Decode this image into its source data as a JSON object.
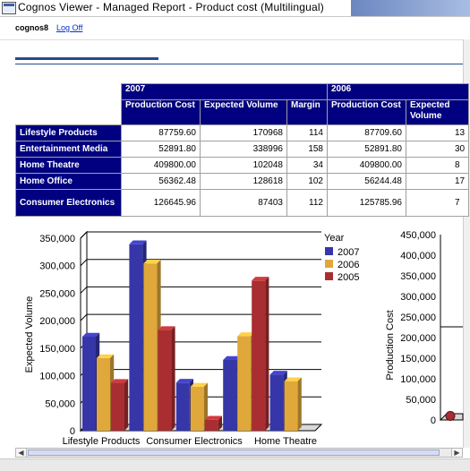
{
  "window": {
    "title": "Cognos Viewer - Managed Report - Product cost (Multilingual)"
  },
  "user": {
    "name": "cognos8",
    "logoff_label": "Log Off"
  },
  "crosstab": {
    "years": [
      "2007",
      "2006"
    ],
    "measures": [
      "Production Cost",
      "Expected Volume",
      "Margin"
    ],
    "measures_2006": [
      "Production Cost",
      "Expected Volume"
    ],
    "rows": [
      {
        "label": "Lifestyle Products",
        "v2007": [
          "87759.60",
          "170968",
          "114"
        ],
        "v2006": [
          "87709.60",
          "13"
        ]
      },
      {
        "label": "Entertainment Media",
        "v2007": [
          "52891.80",
          "338996",
          "158"
        ],
        "v2006": [
          "52891.80",
          "30"
        ]
      },
      {
        "label": "Home Theatre",
        "v2007": [
          "409800.00",
          "102048",
          "34"
        ],
        "v2006": [
          "409800.00",
          "8"
        ]
      },
      {
        "label": "Home Office",
        "v2007": [
          "56362.48",
          "128618",
          "102"
        ],
        "v2006": [
          "56244.48",
          "17"
        ]
      },
      {
        "label": "Consumer Electronics",
        "v2007": [
          "126645.96",
          "87403",
          "112"
        ],
        "v2006": [
          "125785.96",
          "7"
        ]
      }
    ]
  },
  "colors": {
    "header": "#000080",
    "s2007": "#3636a8",
    "s2006": "#e0a83a",
    "s2005": "#a82e32"
  },
  "chart_data": [
    {
      "type": "bar",
      "ylabel": "Expected Volume",
      "ylim": [
        0,
        350000
      ],
      "yticks": [
        "0",
        "50,000",
        "100,000",
        "150,000",
        "200,000",
        "250,000",
        "300,000",
        "350,000"
      ],
      "categories": [
        "Lifestyle Products",
        "Entertainment Media",
        "Consumer Electronics",
        "Home Office",
        "Home Theatre"
      ],
      "x_tick_labels": [
        "Lifestyle Products",
        "Consumer Electronics",
        "Home Theatre"
      ],
      "legend_title": "Year",
      "legend_position": "right",
      "grid": true,
      "series": [
        {
          "name": "2007",
          "values": [
            170968,
            338996,
            87403,
            128618,
            102048
          ]
        },
        {
          "name": "2006",
          "values": [
            132000,
            304000,
            80000,
            172000,
            90000
          ]
        },
        {
          "name": "2005",
          "values": [
            87000,
            183000,
            20000,
            273000,
            null
          ]
        }
      ]
    },
    {
      "type": "scatter",
      "ylabel": "Production Cost",
      "ylim": [
        0,
        450000
      ],
      "yticks": [
        "0",
        "50,000",
        "100,000",
        "150,000",
        "200,000",
        "250,000",
        "300,000",
        "350,000",
        "400,000",
        "450,000"
      ],
      "points": [
        {
          "y": 25000
        }
      ]
    }
  ]
}
